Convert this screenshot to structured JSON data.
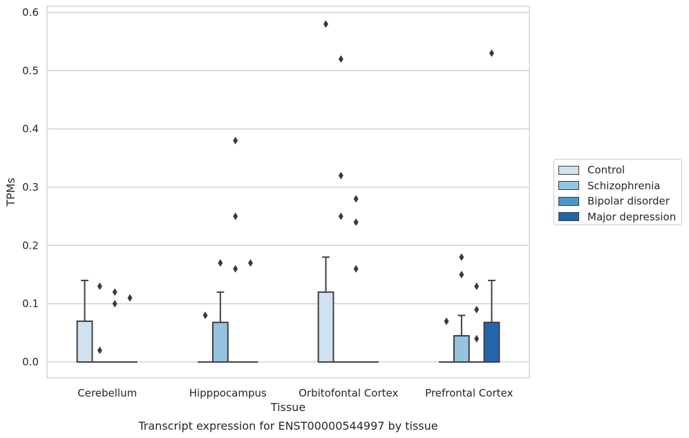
{
  "chart_data": {
    "type": "box",
    "xlabel": "Tissue",
    "ylabel": "TPMs",
    "caption": "Transcript expression for ENST00000544997 by tissue",
    "categories": [
      "Cerebellum",
      "Hipppocampus",
      "Orbitofontal Cortex",
      "Prefrontal Cortex"
    ],
    "ylim": [
      -0.03,
      0.61
    ],
    "yticks": [
      0.0,
      0.1,
      0.2,
      0.3,
      0.4,
      0.5,
      0.6
    ],
    "ytick_labels": [
      "0.0",
      "0.1",
      "0.2",
      "0.3",
      "0.4",
      "0.5",
      "0.6"
    ],
    "grid": "horizontal",
    "legend_position": "right",
    "series": [
      {
        "name": "Control",
        "color": "#d0e1f2",
        "boxes": [
          {
            "q1": 0.0,
            "median": 0.0,
            "q3": 0.07,
            "whislo": 0.0,
            "whishi": 0.14,
            "fliers": []
          },
          {
            "q1": 0.0,
            "median": 0.0,
            "q3": 0.0,
            "whislo": 0.0,
            "whishi": 0.0,
            "fliers": [
              0.08
            ]
          },
          {
            "q1": 0.0,
            "median": 0.0,
            "q3": 0.12,
            "whislo": 0.0,
            "whishi": 0.18,
            "fliers": [
              0.58
            ]
          },
          {
            "q1": 0.0,
            "median": 0.0,
            "q3": 0.0,
            "whislo": 0.0,
            "whishi": 0.0,
            "fliers": [
              0.07
            ]
          }
        ]
      },
      {
        "name": "Schizophrenia",
        "color": "#94c4df",
        "boxes": [
          {
            "q1": 0.0,
            "median": 0.0,
            "q3": 0.0,
            "whislo": 0.0,
            "whishi": 0.0,
            "fliers": [
              0.13,
              0.02
            ]
          },
          {
            "q1": 0.0,
            "median": 0.0,
            "q3": 0.068,
            "whislo": 0.0,
            "whishi": 0.12,
            "fliers": [
              0.17
            ]
          },
          {
            "q1": 0.0,
            "median": 0.0,
            "q3": 0.0,
            "whislo": 0.0,
            "whishi": 0.0,
            "fliers": [
              0.52,
              0.32,
              0.25
            ]
          },
          {
            "q1": 0.0,
            "median": 0.0,
            "q3": 0.045,
            "whislo": 0.0,
            "whishi": 0.08,
            "fliers": [
              0.18,
              0.15
            ]
          }
        ]
      },
      {
        "name": "Bipolar disorder",
        "color": "#4a98c9",
        "boxes": [
          {
            "q1": 0.0,
            "median": 0.0,
            "q3": 0.0,
            "whislo": 0.0,
            "whishi": 0.0,
            "fliers": [
              0.12,
              0.1
            ]
          },
          {
            "q1": 0.0,
            "median": 0.0,
            "q3": 0.0,
            "whislo": 0.0,
            "whishi": 0.0,
            "fliers": [
              0.38,
              0.25,
              0.16
            ]
          },
          {
            "q1": 0.0,
            "median": 0.0,
            "q3": 0.0,
            "whislo": 0.0,
            "whishi": 0.0,
            "fliers": [
              0.28,
              0.24,
              0.16
            ]
          },
          {
            "q1": 0.0,
            "median": 0.0,
            "q3": 0.0,
            "whislo": 0.0,
            "whishi": 0.0,
            "fliers": [
              0.13,
              0.09,
              0.04
            ]
          }
        ]
      },
      {
        "name": "Major depression",
        "color": "#2166ac",
        "boxes": [
          {
            "q1": 0.0,
            "median": 0.0,
            "q3": 0.0,
            "whislo": 0.0,
            "whishi": 0.0,
            "fliers": [
              0.11
            ]
          },
          {
            "q1": 0.0,
            "median": 0.0,
            "q3": 0.0,
            "whislo": 0.0,
            "whishi": 0.0,
            "fliers": [
              0.17
            ]
          },
          {
            "q1": 0.0,
            "median": 0.0,
            "q3": 0.0,
            "whislo": 0.0,
            "whishi": 0.0,
            "fliers": []
          },
          {
            "q1": 0.0,
            "median": 0.0,
            "q3": 0.068,
            "whislo": 0.0,
            "whishi": 0.14,
            "fliers": [
              0.53
            ]
          }
        ]
      }
    ]
  }
}
